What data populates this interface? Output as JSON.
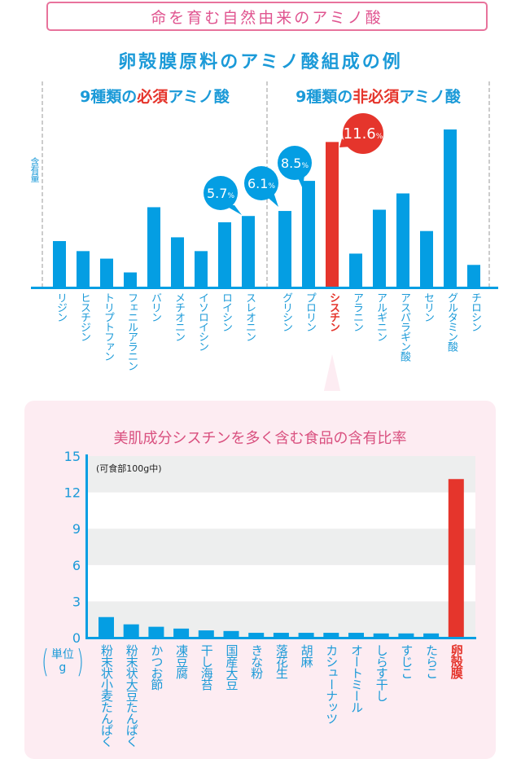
{
  "header": {
    "title": "命を育む自然由来のアミノ酸",
    "subtitle": "卵殻膜原料のアミノ酸組成の例"
  },
  "colors": {
    "blue": "#1b9ad8",
    "bar_blue": "#049ee3",
    "red": "#e5352c",
    "pink": "#e05590",
    "panel_bg": "#fdecf2",
    "band_gray": "#edeeee"
  },
  "chart_data": [
    {
      "type": "bar",
      "title": "卵殻膜原料のアミノ酸組成の例",
      "ylabel": "含有量",
      "unit": "%",
      "groups": [
        {
          "heading_prefix": "9種類の",
          "heading_red": "必須",
          "heading_suffix": "アミノ酸",
          "categories": [
            "リジン",
            "ヒスチジン",
            "トリプトファン",
            "フェニルアラニン",
            "バリン",
            "メチオニン",
            "イソロイシン",
            "ロイシン",
            "スレオニン"
          ],
          "values": [
            3.7,
            2.9,
            2.3,
            1.2,
            6.4,
            4.0,
            2.9,
            5.2,
            5.7
          ]
        },
        {
          "heading_prefix": "9種類の",
          "heading_red": "非必須",
          "heading_suffix": "アミノ酸",
          "categories": [
            "グリシン",
            "プロリン",
            "シスチン",
            "アラニン",
            "アルギニン",
            "アスパラギン酸",
            "セリン",
            "グルタミン酸",
            "チロシン"
          ],
          "values": [
            6.1,
            8.5,
            11.6,
            2.7,
            6.2,
            7.5,
            4.5,
            12.6,
            1.8
          ]
        }
      ],
      "highlight": "シスチン",
      "callouts": [
        {
          "category": "スレオニン",
          "value": "5.7",
          "unit": "%",
          "color": "blue"
        },
        {
          "category": "グリシン",
          "value": "6.1",
          "unit": "%",
          "color": "blue"
        },
        {
          "category": "プロリン",
          "value": "8.5",
          "unit": "%",
          "color": "blue"
        },
        {
          "category": "シスチン",
          "value": "11.6",
          "unit": "%",
          "color": "red"
        }
      ],
      "ylim": [
        0,
        12.6
      ],
      "grid": false
    },
    {
      "type": "bar",
      "title": "美肌成分シスチンを多く含む食品の含有比率",
      "note": "(可食部100g中)",
      "unit_label": {
        "top": "単位",
        "bottom": "g"
      },
      "categories": [
        "粉末状小麦たんぱく",
        "粉末状大豆たんぱく",
        "かつお節",
        "凍豆腐",
        "干し海苔",
        "国産大豆",
        "きな粉",
        "落花生",
        "胡麻",
        "カシューナッツ",
        "オートミール",
        "しらす干し",
        "すじこ",
        "たらこ",
        "卵殻膜"
      ],
      "values": [
        1.7,
        1.1,
        0.9,
        0.75,
        0.6,
        0.55,
        0.4,
        0.4,
        0.4,
        0.4,
        0.4,
        0.35,
        0.35,
        0.35,
        13.1
      ],
      "highlight": "卵殻膜",
      "yticks": [
        "0",
        "3",
        "6",
        "9",
        "12",
        "15"
      ],
      "ylim": [
        0,
        15
      ],
      "grid": "alternating bands"
    }
  ]
}
